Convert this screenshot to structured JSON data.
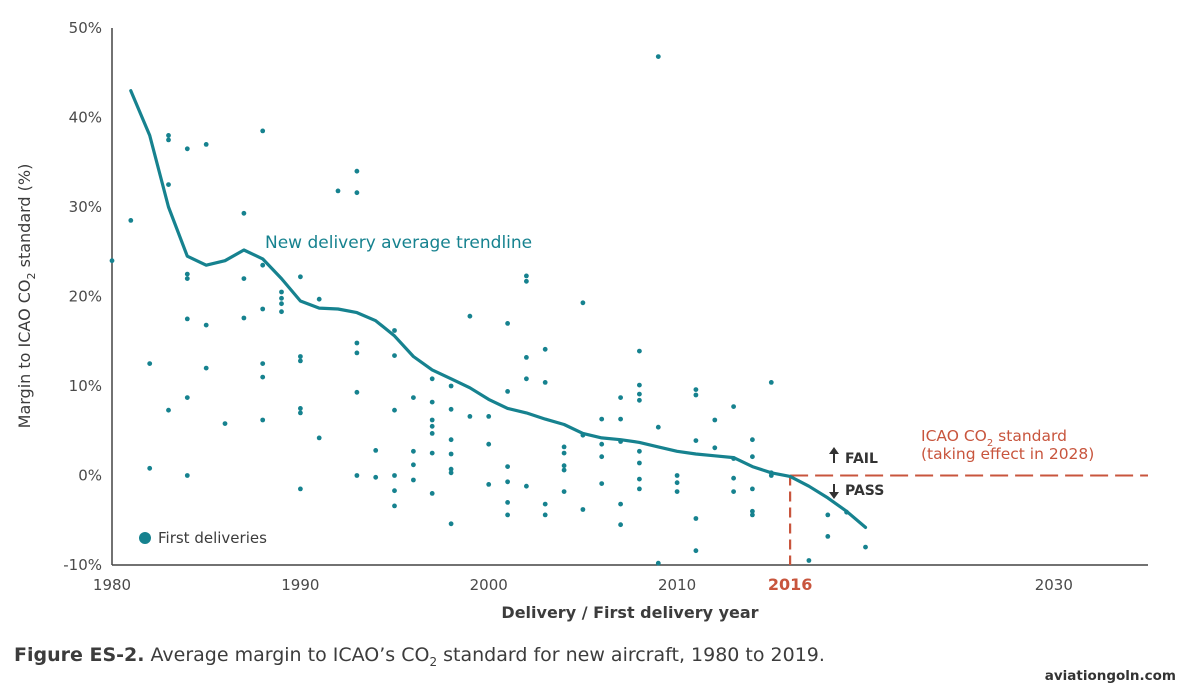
{
  "chart_data": {
    "type": "scatter",
    "xlabel": "Delivery / First delivery year",
    "ylabel_parts": {
      "pre": "Margin to ICAO CO",
      "sub": "2",
      "post": " standard (%)"
    },
    "xlim": [
      1980,
      2035
    ],
    "ylim": [
      -10,
      50
    ],
    "x_ticks": [
      1980,
      1990,
      2000,
      2010,
      2020,
      2030
    ],
    "x_tick_labels": [
      "1980",
      "1990",
      "2000",
      "2010",
      "",
      "2030"
    ],
    "y_ticks": [
      -10,
      0,
      10,
      20,
      30,
      40,
      50
    ],
    "y_tick_labels": [
      "-10%",
      "0%",
      "10%",
      "20%",
      "30%",
      "40%",
      "50%"
    ],
    "grid": false,
    "legend_placement": "bottom-left",
    "series": [
      {
        "name": "First deliveries",
        "kind": "scatter",
        "color": "#16828f",
        "points": [
          [
            1980,
            24
          ],
          [
            1981,
            28.5
          ],
          [
            1982,
            12.5
          ],
          [
            1982,
            0.8
          ],
          [
            1983,
            38
          ],
          [
            1983,
            37.5
          ],
          [
            1983,
            32.5
          ],
          [
            1983,
            7.3
          ],
          [
            1984,
            36.5
          ],
          [
            1984,
            22.5
          ],
          [
            1984,
            22
          ],
          [
            1984,
            17.5
          ],
          [
            1984,
            8.7
          ],
          [
            1984,
            0
          ],
          [
            1985,
            37
          ],
          [
            1985,
            16.8
          ],
          [
            1985,
            12
          ],
          [
            1986,
            5.8
          ],
          [
            1987,
            29.3
          ],
          [
            1987,
            22
          ],
          [
            1987,
            17.6
          ],
          [
            1988,
            38.5
          ],
          [
            1988,
            23.5
          ],
          [
            1988,
            18.6
          ],
          [
            1988,
            12.5
          ],
          [
            1988,
            11
          ],
          [
            1988,
            6.2
          ],
          [
            1989,
            20.5
          ],
          [
            1989,
            19.8
          ],
          [
            1989,
            19.2
          ],
          [
            1989,
            18.3
          ],
          [
            1990,
            22.2
          ],
          [
            1990,
            13.3
          ],
          [
            1990,
            12.8
          ],
          [
            1990,
            7.5
          ],
          [
            1990,
            7
          ],
          [
            1990,
            -1.5
          ],
          [
            1991,
            19.7
          ],
          [
            1991,
            4.2
          ],
          [
            1992,
            31.8
          ],
          [
            1993,
            34
          ],
          [
            1993,
            31.6
          ],
          [
            1993,
            14.8
          ],
          [
            1993,
            13.7
          ],
          [
            1993,
            9.3
          ],
          [
            1993,
            0
          ],
          [
            1994,
            2.8
          ],
          [
            1994,
            -0.2
          ],
          [
            1995,
            16.2
          ],
          [
            1995,
            13.4
          ],
          [
            1995,
            7.3
          ],
          [
            1995,
            0
          ],
          [
            1995,
            -1.7
          ],
          [
            1995,
            -3.4
          ],
          [
            1996,
            8.7
          ],
          [
            1996,
            2.7
          ],
          [
            1996,
            1.2
          ],
          [
            1996,
            -0.5
          ],
          [
            1997,
            10.8
          ],
          [
            1997,
            8.2
          ],
          [
            1997,
            6.2
          ],
          [
            1997,
            5.5
          ],
          [
            1997,
            4.7
          ],
          [
            1997,
            2.5
          ],
          [
            1997,
            -2
          ],
          [
            1998,
            10
          ],
          [
            1998,
            7.4
          ],
          [
            1998,
            4
          ],
          [
            1998,
            2.4
          ],
          [
            1998,
            0.7
          ],
          [
            1998,
            0.3
          ],
          [
            1998,
            -5.4
          ],
          [
            1999,
            17.8
          ],
          [
            1999,
            6.6
          ],
          [
            2000,
            6.6
          ],
          [
            2000,
            3.5
          ],
          [
            2000,
            -1
          ],
          [
            2001,
            17
          ],
          [
            2001,
            9.4
          ],
          [
            2001,
            1
          ],
          [
            2001,
            -0.7
          ],
          [
            2001,
            -3
          ],
          [
            2001,
            -4.4
          ],
          [
            2002,
            22.3
          ],
          [
            2002,
            21.7
          ],
          [
            2002,
            13.2
          ],
          [
            2002,
            10.8
          ],
          [
            2002,
            -1.2
          ],
          [
            2003,
            14.1
          ],
          [
            2003,
            10.4
          ],
          [
            2003,
            -3.2
          ],
          [
            2003,
            -4.4
          ],
          [
            2004,
            3.2
          ],
          [
            2004,
            2.5
          ],
          [
            2004,
            1.1
          ],
          [
            2004,
            0.6
          ],
          [
            2004,
            -1.8
          ],
          [
            2005,
            19.3
          ],
          [
            2005,
            4.5
          ],
          [
            2005,
            -3.8
          ],
          [
            2006,
            6.3
          ],
          [
            2006,
            3.5
          ],
          [
            2006,
            2.1
          ],
          [
            2006,
            -0.9
          ],
          [
            2007,
            8.7
          ],
          [
            2007,
            6.3
          ],
          [
            2007,
            3.8
          ],
          [
            2007,
            -3.2
          ],
          [
            2007,
            -5.5
          ],
          [
            2008,
            13.9
          ],
          [
            2008,
            10.1
          ],
          [
            2008,
            9.1
          ],
          [
            2008,
            8.4
          ],
          [
            2008,
            2.7
          ],
          [
            2008,
            1.4
          ],
          [
            2008,
            -0.4
          ],
          [
            2008,
            -1.5
          ],
          [
            2009,
            46.8
          ],
          [
            2009,
            5.4
          ],
          [
            2009,
            -9.8
          ],
          [
            2010,
            0
          ],
          [
            2010,
            -0.8
          ],
          [
            2010,
            -1.8
          ],
          [
            2011,
            9.6
          ],
          [
            2011,
            9
          ],
          [
            2011,
            3.9
          ],
          [
            2011,
            -4.8
          ],
          [
            2011,
            -8.4
          ],
          [
            2012,
            6.2
          ],
          [
            2012,
            3.1
          ],
          [
            2013,
            7.7
          ],
          [
            2013,
            1.9
          ],
          [
            2013,
            -0.3
          ],
          [
            2013,
            -1.8
          ],
          [
            2014,
            4
          ],
          [
            2014,
            2.1
          ],
          [
            2014,
            -1.5
          ],
          [
            2014,
            -4
          ],
          [
            2014,
            -4.4
          ],
          [
            2015,
            10.4
          ],
          [
            2015,
            0.3
          ],
          [
            2015,
            0
          ],
          [
            2017,
            -9.5
          ],
          [
            2018,
            -4.4
          ],
          [
            2018,
            -6.8
          ],
          [
            2019,
            -4.1
          ],
          [
            2020,
            -8
          ]
        ]
      },
      {
        "name": "New delivery average trendline",
        "kind": "line",
        "color": "#16828f",
        "points": [
          [
            1981,
            43
          ],
          [
            1982,
            38
          ],
          [
            1983,
            30
          ],
          [
            1984,
            24.5
          ],
          [
            1985,
            23.5
          ],
          [
            1986,
            24
          ],
          [
            1987,
            25.2
          ],
          [
            1988,
            24.2
          ],
          [
            1989,
            22
          ],
          [
            1990,
            19.5
          ],
          [
            1991,
            18.7
          ],
          [
            1992,
            18.6
          ],
          [
            1993,
            18.2
          ],
          [
            1994,
            17.3
          ],
          [
            1995,
            15.6
          ],
          [
            1996,
            13.3
          ],
          [
            1997,
            11.8
          ],
          [
            1998,
            10.8
          ],
          [
            1999,
            9.8
          ],
          [
            2000,
            8.5
          ],
          [
            2001,
            7.5
          ],
          [
            2002,
            7
          ],
          [
            2003,
            6.3
          ],
          [
            2004,
            5.7
          ],
          [
            2005,
            4.7
          ],
          [
            2006,
            4.2
          ],
          [
            2007,
            4
          ],
          [
            2008,
            3.7
          ],
          [
            2009,
            3.2
          ],
          [
            2010,
            2.7
          ],
          [
            2011,
            2.4
          ],
          [
            2012,
            2.2
          ],
          [
            2013,
            2
          ],
          [
            2014,
            1
          ],
          [
            2015,
            0.3
          ],
          [
            2016,
            -0.1
          ],
          [
            2017,
            -1.2
          ],
          [
            2018,
            -2.5
          ],
          [
            2019,
            -4
          ],
          [
            2020,
            -5.8
          ]
        ]
      }
    ],
    "reference_line": {
      "y": 0,
      "x_start": 2016,
      "color": "#c8553d",
      "label_line1_parts": {
        "pre": "ICAO CO",
        "sub": "2",
        "post": " standard"
      },
      "label_line2": "(taking effect in 2028)"
    },
    "marker_2016": {
      "x": 2016,
      "label": "2016",
      "color": "#c8553d"
    },
    "annotations": {
      "trendline_label": "New delivery average trendline",
      "fail_label": "FAIL",
      "pass_label": "PASS"
    }
  },
  "caption": {
    "bold": "Figure ES-2.",
    "text_pre": " Average margin to ICAO’s CO",
    "text_sub": "2",
    "text_post": " standard for new aircraft, 1980 to 2019."
  },
  "source": "aviationgoln.com"
}
